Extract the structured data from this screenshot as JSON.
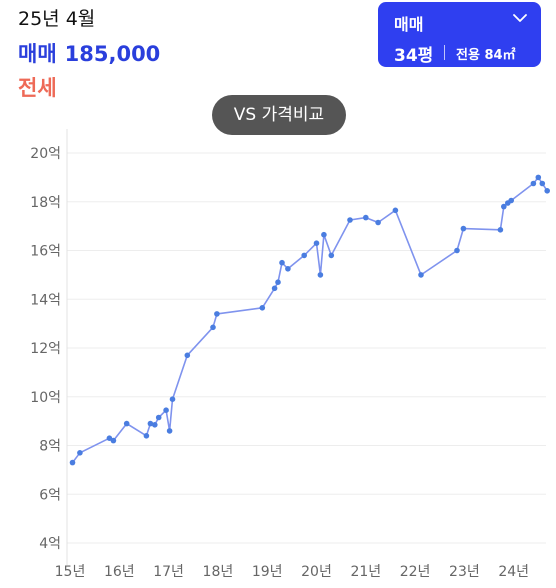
{
  "header": {
    "date": "25년 4월",
    "price_label": "매매",
    "price_value": "185,000",
    "jeonse_label": "전세"
  },
  "picker": {
    "type": "매매",
    "pyeong": "34평",
    "area": "전용 84㎡"
  },
  "compare_button": {
    "label": "VS 가격비교"
  },
  "colors": {
    "accent": "#2f3ff0",
    "price_text": "#2a3fdc",
    "jeonse_text": "#ee6a57",
    "line": "#7f93ee",
    "point": "#4a7de0"
  },
  "chart_data": {
    "type": "line",
    "ylim": [
      4,
      20
    ],
    "yticks": [
      4,
      6,
      8,
      10,
      12,
      14,
      16,
      18,
      20
    ],
    "ytick_labels": [
      "4억",
      "6억",
      "8억",
      "10억",
      "12억",
      "14억",
      "16억",
      "18억",
      "20억"
    ],
    "xticks": [
      2015,
      2016,
      2017,
      2018,
      2019,
      2020,
      2021,
      2022,
      2023,
      2024
    ],
    "xtick_labels": [
      "15년",
      "16년",
      "17년",
      "18년",
      "19년",
      "20년",
      "21년",
      "22년",
      "23년",
      "24년"
    ],
    "xlim": [
      2015,
      2025.6
    ],
    "grid": true,
    "series": [
      {
        "points": [
          [
            2015.05,
            7.3
          ],
          [
            2015.2,
            7.7
          ],
          [
            2015.8,
            8.3
          ],
          [
            2015.88,
            8.2
          ],
          [
            2016.15,
            8.9
          ],
          [
            2016.55,
            8.4
          ],
          [
            2016.63,
            8.9
          ],
          [
            2016.72,
            8.85
          ],
          [
            2016.8,
            9.15
          ],
          [
            2016.95,
            9.45
          ],
          [
            2017.02,
            8.6
          ],
          [
            2017.08,
            9.9
          ],
          [
            2017.38,
            11.7
          ],
          [
            2017.9,
            12.85
          ],
          [
            2017.98,
            13.4
          ],
          [
            2018.9,
            13.65
          ],
          [
            2019.15,
            14.45
          ],
          [
            2019.22,
            14.7
          ],
          [
            2019.3,
            15.5
          ],
          [
            2019.42,
            15.25
          ],
          [
            2019.75,
            15.8
          ],
          [
            2020.0,
            16.3
          ],
          [
            2020.08,
            15.0
          ],
          [
            2020.15,
            16.65
          ],
          [
            2020.3,
            15.8
          ],
          [
            2020.68,
            17.25
          ],
          [
            2021.0,
            17.35
          ],
          [
            2021.25,
            17.15
          ],
          [
            2021.6,
            17.65
          ],
          [
            2022.12,
            15.0
          ],
          [
            2022.85,
            16.0
          ],
          [
            2022.98,
            16.9
          ],
          [
            2023.73,
            16.85
          ],
          [
            2023.8,
            17.8
          ],
          [
            2023.88,
            17.95
          ],
          [
            2023.95,
            18.05
          ],
          [
            2024.4,
            18.75
          ],
          [
            2024.5,
            19.0
          ],
          [
            2024.58,
            18.75
          ],
          [
            2024.68,
            18.45
          ]
        ]
      }
    ]
  }
}
